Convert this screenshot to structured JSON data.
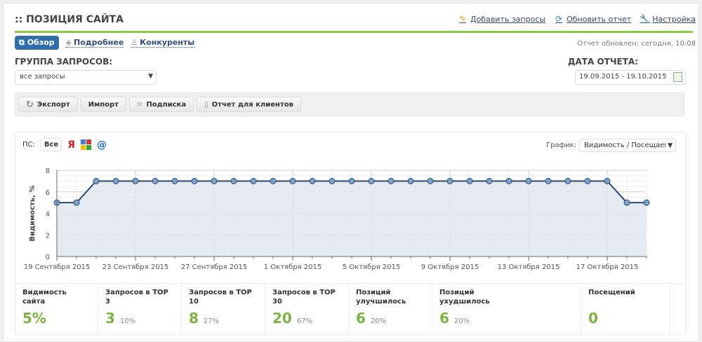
{
  "header": {
    "title": ":: ПОЗИЦИЯ САЙТА",
    "links": [
      "Добавить запросы",
      "Обновить отчет",
      "Настройка"
    ]
  },
  "tabs": [
    "Обзор",
    "Подробнее",
    "Конкуренты"
  ],
  "updated": "Отчет обновлен: сегодня, 10:08",
  "group": {
    "label": "ГРУППА ЗАПРОСОВ:",
    "value": "все запросы"
  },
  "date": {
    "label": "ДАТА ОТЧЕТА:",
    "value": "19.09.2015 - 19.10.2015"
  },
  "toolbar": [
    "Экспорт",
    "Импорт",
    "Подписка",
    "Отчет для клиентов"
  ],
  "ps": {
    "label": "ПС:",
    "all": "Все",
    "yandex": "Я",
    "mail": "@"
  },
  "graph": {
    "label": "График:",
    "value": "Видимость / Посещаемость"
  },
  "chart_data": {
    "type": "area",
    "ylabel": "Видимость, %",
    "ylim": [
      0,
      8
    ],
    "yticks": [
      0,
      2,
      4,
      6,
      8
    ],
    "x_start": "2015-09-19",
    "xtick_labels": [
      "19 Сентября 2015",
      "23 Сентября 2015",
      "27 Сентября 2015",
      "1 Октября 2015",
      "5 Октября 2015",
      "9 Октября 2015",
      "13 Октября 2015",
      "17 Октября 2015"
    ],
    "values": [
      5,
      5,
      7,
      7,
      7,
      7,
      7,
      7,
      7,
      7,
      7,
      7,
      7,
      7,
      7,
      7,
      7,
      7,
      7,
      7,
      7,
      7,
      7,
      7,
      7,
      7,
      7,
      7,
      7,
      5,
      5
    ],
    "grid": true,
    "colors": {
      "line": "#2b4a6e",
      "fill": "#dfe6ee",
      "marker": "#7aa3cc"
    }
  },
  "stats": [
    {
      "label": "Видимость сайта",
      "value": "5%",
      "pct": ""
    },
    {
      "label": "Запросов в TOP 3",
      "value": "3",
      "pct": "10%"
    },
    {
      "label": "Запросов в TOP 10",
      "value": "8",
      "pct": "27%"
    },
    {
      "label": "Запросов в TOP 30",
      "value": "20",
      "pct": "67%"
    },
    {
      "label": "Позиций улучшилось",
      "value": "6",
      "pct": "20%"
    },
    {
      "label": "Позиций ухудшилось",
      "value": "6",
      "pct": "20%"
    },
    {
      "label": "Посещений",
      "value": "0",
      "pct": ""
    }
  ]
}
